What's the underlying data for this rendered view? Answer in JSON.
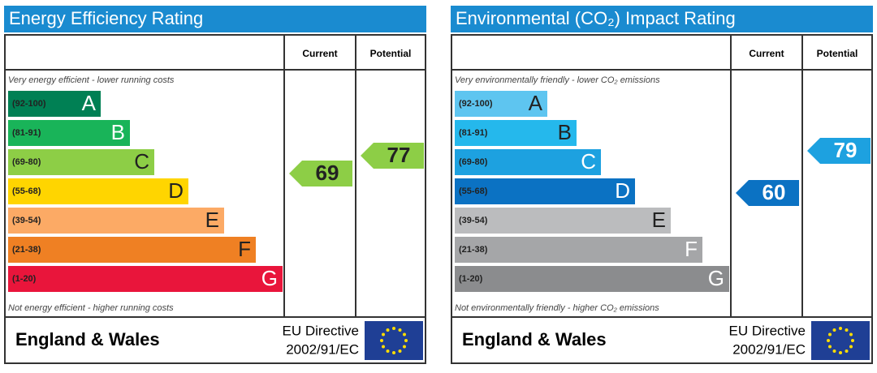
{
  "panels": [
    {
      "title": "Energy Efficiency Rating",
      "columns": [
        "Current",
        "Potential"
      ],
      "top_note": "Very energy efficient - lower running costs",
      "bottom_note": "Not energy efficient - higher running costs",
      "bands": [
        {
          "range": "(92-100)",
          "letter": "A",
          "color": "#008054"
        },
        {
          "range": "(81-91)",
          "letter": "B",
          "color": "#19b459"
        },
        {
          "range": "(69-80)",
          "letter": "C",
          "color": "#8dce46"
        },
        {
          "range": "(55-68)",
          "letter": "D",
          "color": "#ffd500"
        },
        {
          "range": "(39-54)",
          "letter": "E",
          "color": "#fcaa65"
        },
        {
          "range": "(21-38)",
          "letter": "F",
          "color": "#ef8023"
        },
        {
          "range": "(1-20)",
          "letter": "G",
          "color": "#e9153b"
        }
      ],
      "current": 69,
      "current_color": "#8dce46",
      "potential": 77,
      "potential_color": "#8dce46",
      "footer": {
        "region": "England & Wales",
        "directive": [
          "EU Directive",
          "2002/91/EC"
        ]
      }
    },
    {
      "title": "Environmental (CO₂) Impact Rating",
      "columns": [
        "Current",
        "Potential"
      ],
      "top_note": "Very environmentally friendly - lower CO₂ emissions",
      "bottom_note": "Not environmentally friendly - higher CO₂ emissions",
      "bands": [
        {
          "range": "(92-100)",
          "letter": "A",
          "color": "#5ec5f0"
        },
        {
          "range": "(81-91)",
          "letter": "B",
          "color": "#25b8ec"
        },
        {
          "range": "(69-80)",
          "letter": "C",
          "color": "#1da1e0"
        },
        {
          "range": "(55-68)",
          "letter": "D",
          "color": "#0b72c3"
        },
        {
          "range": "(39-54)",
          "letter": "E",
          "color": "#bbbcbe"
        },
        {
          "range": "(21-38)",
          "letter": "F",
          "color": "#a5a6a8"
        },
        {
          "range": "(1-20)",
          "letter": "G",
          "color": "#8b8c8e"
        }
      ],
      "current": 60,
      "current_color": "#0b72c3",
      "potential": 79,
      "potential_color": "#1da1e0",
      "footer": {
        "region": "England & Wales",
        "directive": [
          "EU Directive",
          "2002/91/EC"
        ]
      }
    }
  ]
}
